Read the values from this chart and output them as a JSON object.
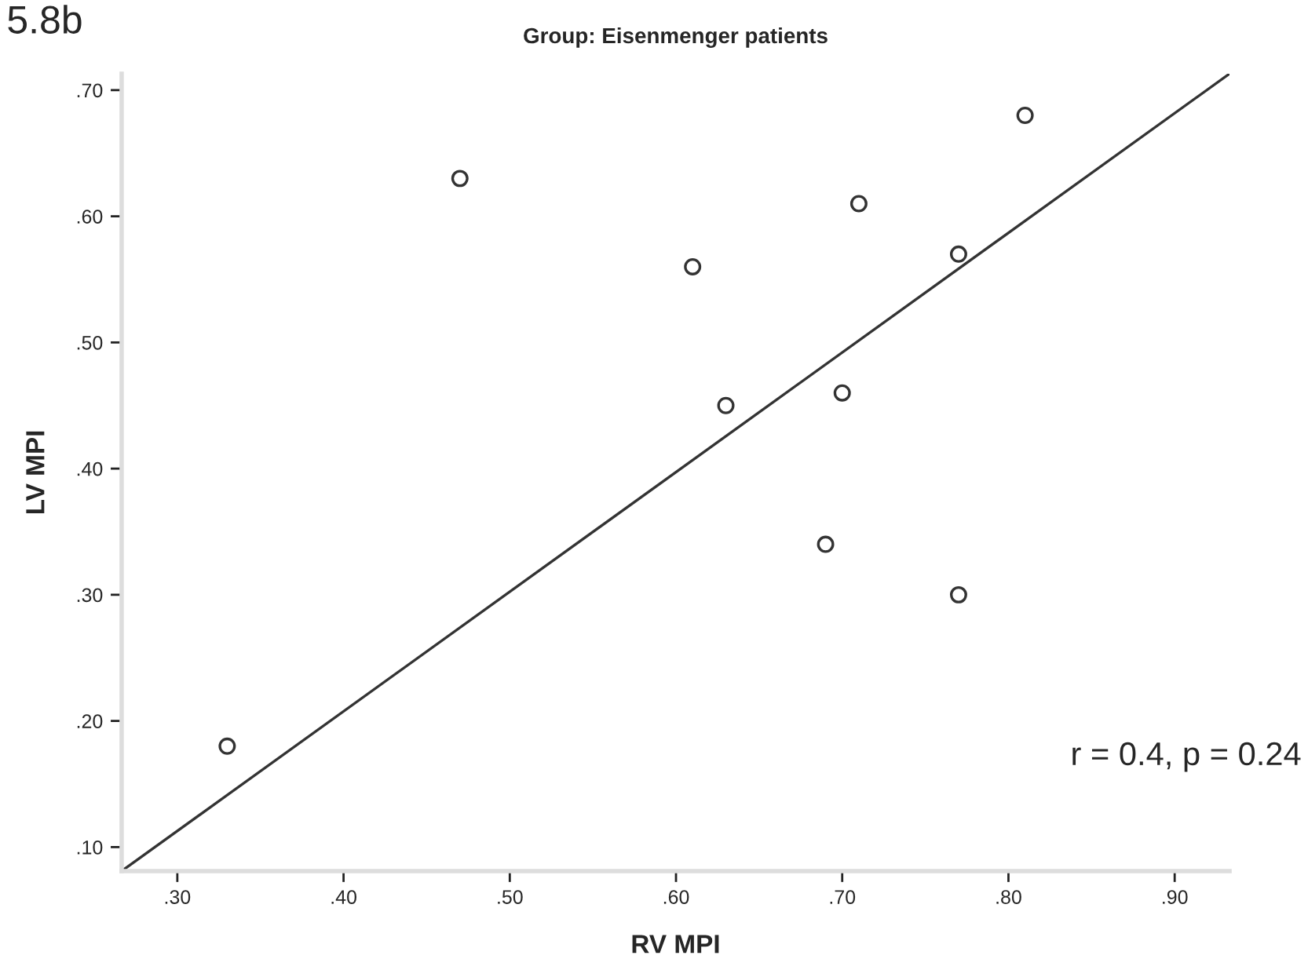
{
  "chart_data": {
    "type": "scatter",
    "title": "Group: Eisenmenger patients",
    "xlabel": "RV MPI",
    "ylabel": "LV MPI",
    "annotations": [
      "5.8b",
      "r = 0.4, p = 0.24"
    ],
    "series": [
      {
        "color": "#333333",
        "marker": "circle",
        "x": [
          0.33,
          0.47,
          0.61,
          0.63,
          0.69,
          0.7,
          0.71,
          0.77,
          0.77,
          0.81
        ],
        "values": [
          0.18,
          0.63,
          0.56,
          0.45,
          0.34,
          0.46,
          0.61,
          0.57,
          0.3,
          0.68
        ]
      },
      {
        "type": "line",
        "color": "#333333",
        "x": [
          0.2665,
          0.933
        ],
        "values": [
          0.081,
          0.713
        ]
      }
    ],
    "xlim": [
      0.2665,
      0.933
    ],
    "ylim": [
      0.081,
      0.713
    ],
    "xticks": [
      {
        "value": 0.3,
        "label": ".30"
      },
      {
        "value": 0.4,
        "label": ".40"
      },
      {
        "value": 0.5,
        "label": ".50"
      },
      {
        "value": 0.6,
        "label": ".60"
      },
      {
        "value": 0.7,
        "label": ".70"
      },
      {
        "value": 0.8,
        "label": ".80"
      },
      {
        "value": 0.9,
        "label": ".90"
      }
    ],
    "yticks": [
      {
        "value": 0.1,
        "label": ".10"
      },
      {
        "value": 0.2,
        "label": ".20"
      },
      {
        "value": 0.3,
        "label": ".30"
      },
      {
        "value": 0.4,
        "label": ".40"
      },
      {
        "value": 0.5,
        "label": ".50"
      },
      {
        "value": 0.6,
        "label": ".60"
      },
      {
        "value": 0.7,
        "label": ".70"
      }
    ],
    "grid": false,
    "legend": false
  }
}
